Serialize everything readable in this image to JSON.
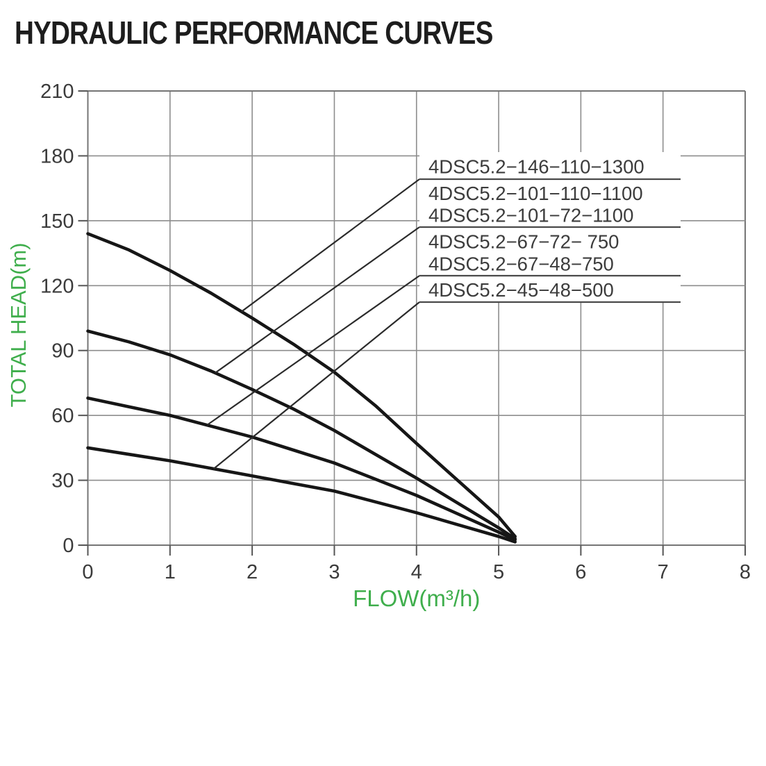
{
  "page": {
    "title": "HYDRAULIC PERFORMANCE CURVES"
  },
  "chart_data": {
    "type": "line",
    "title": "HYDRAULIC PERFORMANCE CURVES",
    "xlabel": "FLOW(m³/h)",
    "ylabel": "TOTAL HEAD(m)",
    "xlim": [
      0,
      8
    ],
    "ylim": [
      0,
      210
    ],
    "x_ticks": [
      "0",
      "1",
      "2",
      "3",
      "4",
      "5",
      "6",
      "7",
      "8"
    ],
    "y_ticks": [
      "0",
      "30",
      "60",
      "90",
      "120",
      "150",
      "180",
      "210"
    ],
    "grid": true,
    "legend_position": "upper-right-callout-box",
    "colors": {
      "axis_title_green": "#3fae4c",
      "tick_label_gray": "#3b3b3b",
      "grid_gray": "#8d8d8d",
      "frame_gray": "#757575",
      "curve_black": "#161616",
      "legend_text_gray": "#3c3c3c",
      "leader_line": "#2b2b2b"
    },
    "series": [
      {
        "labels": [
          "4DSC5.2−146−110−1300"
        ],
        "leader_flow": 1.87,
        "points": [
          [
            0,
            144
          ],
          [
            0.5,
            136.5
          ],
          [
            1,
            127
          ],
          [
            1.5,
            116.5
          ],
          [
            2,
            105
          ],
          [
            2.5,
            93
          ],
          [
            3,
            80
          ],
          [
            3.5,
            64.5
          ],
          [
            4,
            47
          ],
          [
            4.5,
            30
          ],
          [
            5,
            13
          ],
          [
            5.2,
            4
          ]
        ]
      },
      {
        "labels": [
          "4DSC5.2−101−110−1100",
          "4DSC5.2−101−72−1100"
        ],
        "leader_flow": 1.55,
        "points": [
          [
            0,
            99
          ],
          [
            0.5,
            94
          ],
          [
            1,
            88
          ],
          [
            1.5,
            80.5
          ],
          [
            2,
            72
          ],
          [
            2.5,
            63
          ],
          [
            3,
            53
          ],
          [
            3.5,
            42
          ],
          [
            4,
            31
          ],
          [
            4.5,
            19.5
          ],
          [
            5,
            8
          ],
          [
            5.2,
            3
          ]
        ]
      },
      {
        "labels": [
          "4DSC5.2−67−72− 750",
          "4DSC5.2−67−48−750"
        ],
        "leader_flow": 1.45,
        "points": [
          [
            0,
            68
          ],
          [
            0.5,
            64
          ],
          [
            1,
            60
          ],
          [
            1.5,
            55
          ],
          [
            2,
            50
          ],
          [
            2.5,
            44
          ],
          [
            3,
            38
          ],
          [
            3.5,
            30.5
          ],
          [
            4,
            23
          ],
          [
            4.5,
            14.5
          ],
          [
            5,
            6
          ],
          [
            5.2,
            2.5
          ]
        ]
      },
      {
        "labels": [
          "4DSC5.2−45−48−500"
        ],
        "leader_flow": 1.53,
        "points": [
          [
            0,
            45
          ],
          [
            0.5,
            42
          ],
          [
            1,
            39
          ],
          [
            1.5,
            35.5
          ],
          [
            2,
            32
          ],
          [
            2.5,
            28.5
          ],
          [
            3,
            25
          ],
          [
            3.5,
            20
          ],
          [
            4,
            15
          ],
          [
            4.5,
            9.5
          ],
          [
            5,
            4
          ],
          [
            5.2,
            1.5
          ]
        ]
      }
    ]
  }
}
